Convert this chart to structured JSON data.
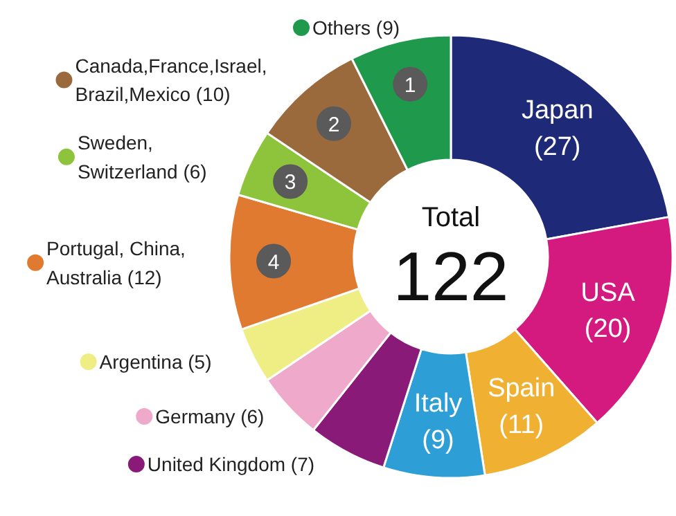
{
  "chart_data": {
    "type": "donut",
    "categories": [
      "Japan",
      "USA",
      "Spain",
      "Italy",
      "United Kingdom",
      "Germany",
      "Argentina",
      "Portugal, China, Australia",
      "Sweden, Switzerland",
      "Canada,France,Israel, Brazil,Mexico",
      "Others"
    ],
    "values": [
      27,
      20,
      11,
      9,
      7,
      6,
      5,
      12,
      6,
      10,
      9
    ],
    "value_labels": [
      "(27)",
      "(20)",
      "(11)",
      "(9)",
      "(7)",
      "(6)",
      "(5)",
      "(12)",
      "(6)",
      "(10)",
      "(9)"
    ],
    "colors": [
      "#1e2a78",
      "#d4197f",
      "#f0b133",
      "#2e9fd6",
      "#8a1a78",
      "#efaacb",
      "#eeee84",
      "#e07a30",
      "#8dc43c",
      "#9b6a3c",
      "#1f9a4c"
    ],
    "annotations": [
      "Total",
      "122",
      {
        "text": "1",
        "x": "Others"
      },
      {
        "text": "2",
        "x": "Canada,France,Israel, Brazil,Mexico"
      },
      {
        "text": "3",
        "x": "Sweden, Switzerland"
      },
      {
        "text": "4",
        "x": "Portugal, China, Australia"
      }
    ],
    "legend": "left"
  }
}
